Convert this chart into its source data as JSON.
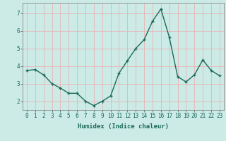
{
  "x": [
    0,
    1,
    2,
    3,
    4,
    5,
    6,
    7,
    8,
    9,
    10,
    11,
    12,
    13,
    14,
    15,
    16,
    17,
    18,
    19,
    20,
    21,
    22,
    23
  ],
  "y": [
    3.75,
    3.8,
    3.5,
    3.0,
    2.75,
    2.45,
    2.45,
    2.0,
    1.75,
    2.0,
    2.3,
    3.6,
    4.3,
    5.0,
    5.5,
    6.55,
    7.25,
    5.65,
    3.4,
    3.1,
    3.5,
    4.35,
    3.75,
    3.45
  ],
  "line_color": "#1a6b5a",
  "marker": "+",
  "markersize": 3,
  "linewidth": 1.0,
  "markeredgewidth": 1.0,
  "xlabel": "Humidex (Indice chaleur)",
  "ylim": [
    1.5,
    7.6
  ],
  "xlim": [
    -0.5,
    23.5
  ],
  "yticks": [
    2,
    3,
    4,
    5,
    6,
    7
  ],
  "xticks": [
    0,
    1,
    2,
    3,
    4,
    5,
    6,
    7,
    8,
    9,
    10,
    11,
    12,
    13,
    14,
    15,
    16,
    17,
    18,
    19,
    20,
    21,
    22,
    23
  ],
  "bg_color": "#cceae6",
  "grid_color": "#e8b4b4",
  "xlabel_fontsize": 6.5,
  "tick_fontsize": 5.5,
  "tick_color": "#1a6b5a"
}
